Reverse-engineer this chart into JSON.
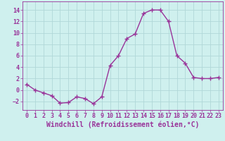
{
  "x": [
    0,
    1,
    2,
    3,
    4,
    5,
    6,
    7,
    8,
    9,
    10,
    11,
    12,
    13,
    14,
    15,
    16,
    17,
    18,
    19,
    20,
    21,
    22,
    23
  ],
  "y": [
    1,
    0,
    -0.5,
    -1,
    -2.3,
    -2.2,
    -1.2,
    -1.5,
    -2.4,
    -1.2,
    4.3,
    6.0,
    9.0,
    9.8,
    13.4,
    14.0,
    14.0,
    12.0,
    6.0,
    4.7,
    2.2,
    2.0,
    2.0,
    2.2
  ],
  "line_color": "#993399",
  "marker": "+",
  "marker_size": 4,
  "marker_linewidth": 1.0,
  "bg_color": "#cff0ee",
  "grid_color": "#b0d8d8",
  "xlabel": "Windchill (Refroidissement éolien,°C)",
  "xlim": [
    -0.5,
    23.5
  ],
  "ylim": [
    -3.5,
    15.5
  ],
  "yticks": [
    -2,
    0,
    2,
    4,
    6,
    8,
    10,
    12,
    14
  ],
  "xticks": [
    0,
    1,
    2,
    3,
    4,
    5,
    6,
    7,
    8,
    9,
    10,
    11,
    12,
    13,
    14,
    15,
    16,
    17,
    18,
    19,
    20,
    21,
    22,
    23
  ],
  "xlabel_fontsize": 7,
  "tick_fontsize": 6,
  "label_color": "#993399",
  "line_width": 1.0
}
